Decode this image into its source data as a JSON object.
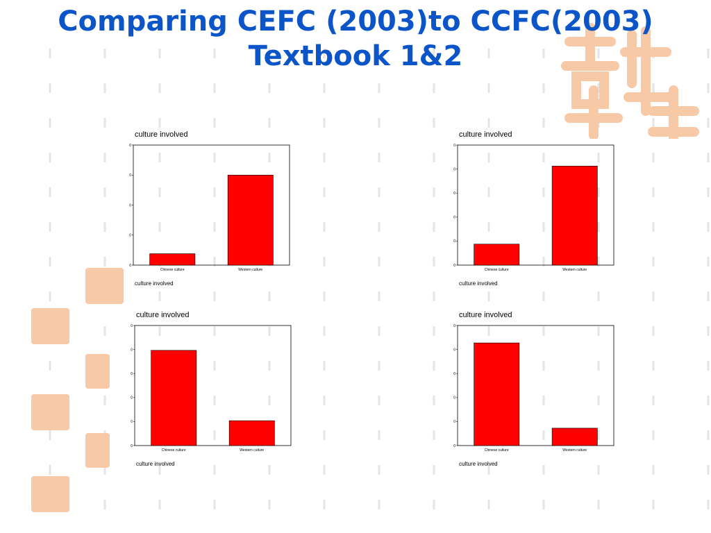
{
  "title": {
    "line1": "Comparing CEFC (2003)to CCFC(2003)",
    "line2": "Textbook 1&2"
  },
  "colors": {
    "title": "#0B55C8",
    "bar": "#FF0000",
    "seal": "#F7C9A6"
  },
  "chart_data": [
    {
      "type": "bar",
      "title": "culture involved",
      "xlabel": "culture involved",
      "categories": [
        "Chinese culture",
        "Western culture"
      ],
      "values": [
        3.8,
        30
      ],
      "ylim": [
        0,
        40
      ],
      "yticks": [
        0,
        10,
        20,
        30,
        40
      ],
      "grid": false
    },
    {
      "type": "bar",
      "title": "culture involved",
      "xlabel": "culture involved",
      "categories": [
        "Chinese culture",
        "Western culture"
      ],
      "values": [
        17.5,
        82.5
      ],
      "ylim": [
        0,
        100
      ],
      "yticks": [
        0,
        20,
        40,
        60,
        80,
        100
      ],
      "grid": false
    },
    {
      "type": "bar",
      "title": "culture involved",
      "xlabel": "culture involved",
      "categories": [
        "Chinese culture",
        "Western culture"
      ],
      "values": [
        79.3,
        20.7
      ],
      "ylim": [
        0,
        100
      ],
      "yticks": [
        0,
        20,
        40,
        60,
        80,
        100
      ],
      "grid": false
    },
    {
      "type": "bar",
      "title": "culture involved",
      "xlabel": "culture involved",
      "categories": [
        "Chinese culture",
        "Western culture"
      ],
      "values": [
        85.5,
        14.5
      ],
      "ylim": [
        0,
        100
      ],
      "yticks": [
        0,
        20,
        40,
        60,
        80,
        100
      ],
      "grid": false
    }
  ]
}
